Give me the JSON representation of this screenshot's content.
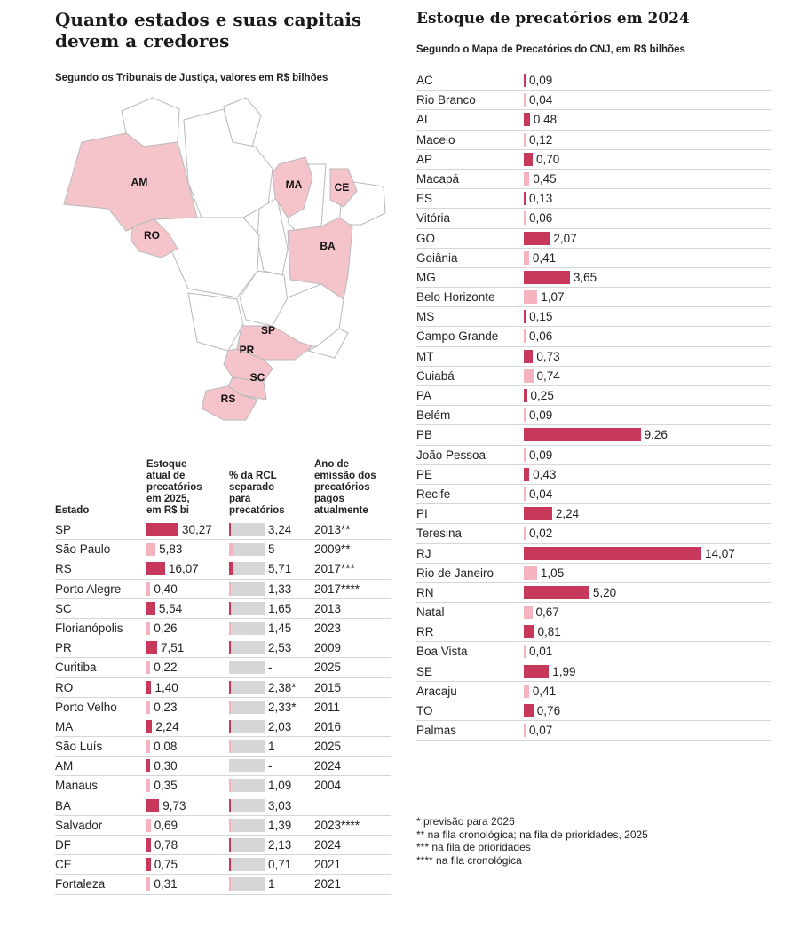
{
  "left_panel": {
    "title_line1": "Quanto estados e suas capitais",
    "title_line2": "devem a credores",
    "subtitle": "Segundo os Tribunais de Justiça, valores em R$ bilhões",
    "map_labels": [
      "AM",
      "RO",
      "MA",
      "CE",
      "BA",
      "SP",
      "PR",
      "SC",
      "RS"
    ],
    "columns": {
      "estado": "Estado",
      "estoque_l1": "Estoque",
      "estoque_l2": "atual de",
      "estoque_l3": "precatórios",
      "estoque_l4": "em 2025,",
      "estoque_l5": "em R$ bi",
      "rcl_l1": "% da RCL",
      "rcl_l2": "separado",
      "rcl_l3": "para",
      "rcl_l4": "precatórios",
      "ano_l1": "Ano de",
      "ano_l2": "emissão dos",
      "ano_l3": "precatórios",
      "ano_l4": "pagos",
      "ano_l5": "atualmente"
    }
  },
  "right_panel": {
    "title": "Estoque de precatórios em 2024",
    "subtitle": "Segundo o Mapa de Precatórios do CNJ, em R$ bilhões"
  },
  "colors": {
    "state": "#c8385a",
    "capital": "#f5b3bf",
    "map_fill": "#f5c4cb",
    "track": "#d6d6d6"
  },
  "chart_data": [
    {
      "type": "table",
      "title": "Quanto estados e suas capitais devem a credores",
      "subtitle": "Segundo os Tribunais de Justiça, valores em R$ bilhões",
      "rows": [
        {
          "name": "SP",
          "kind": "state",
          "estoque": 30.27,
          "estoque_label": "30,27",
          "rcl": 3.24,
          "rcl_label": "3,24",
          "ano": "2013**"
        },
        {
          "name": "São Paulo",
          "kind": "capital",
          "estoque": 5.83,
          "estoque_label": "5,83",
          "rcl": 5,
          "rcl_label": "5",
          "ano": "2009**"
        },
        {
          "name": "RS",
          "kind": "state",
          "estoque": 16.07,
          "estoque_label": "16,07",
          "rcl": 5.71,
          "rcl_label": "5,71",
          "ano": "2017***"
        },
        {
          "name": "Porto Alegre",
          "kind": "capital",
          "estoque": 0.4,
          "estoque_label": "0,40",
          "rcl": 1.33,
          "rcl_label": "1,33",
          "ano": "2017****"
        },
        {
          "name": "SC",
          "kind": "state",
          "estoque": 5.54,
          "estoque_label": "5,54",
          "rcl": 1.65,
          "rcl_label": "1,65",
          "ano": "2013"
        },
        {
          "name": "Florianópolis",
          "kind": "capital",
          "estoque": 0.26,
          "estoque_label": "0,26",
          "rcl": 1.45,
          "rcl_label": "1,45",
          "ano": "2023"
        },
        {
          "name": "PR",
          "kind": "state",
          "estoque": 7.51,
          "estoque_label": "7,51",
          "rcl": 2.53,
          "rcl_label": "2,53",
          "ano": "2009"
        },
        {
          "name": "Curitiba",
          "kind": "capital",
          "estoque": 0.22,
          "estoque_label": "0,22",
          "rcl": null,
          "rcl_label": "-",
          "ano": "2025"
        },
        {
          "name": "RO",
          "kind": "state",
          "estoque": 1.4,
          "estoque_label": "1,40",
          "rcl": 2.38,
          "rcl_label": "2,38*",
          "ano": "2015"
        },
        {
          "name": "Porto Velho",
          "kind": "capital",
          "estoque": 0.23,
          "estoque_label": "0,23",
          "rcl": 2.33,
          "rcl_label": "2,33*",
          "ano": "2011"
        },
        {
          "name": "MA",
          "kind": "state",
          "estoque": 2.24,
          "estoque_label": "2,24",
          "rcl": 2.03,
          "rcl_label": "2,03",
          "ano": "2016"
        },
        {
          "name": "São Luís",
          "kind": "capital",
          "estoque": 0.08,
          "estoque_label": "0,08",
          "rcl": 1,
          "rcl_label": "1",
          "ano": "2025"
        },
        {
          "name": "AM",
          "kind": "state",
          "estoque": 0.3,
          "estoque_label": "0,30",
          "rcl": null,
          "rcl_label": "-",
          "ano": "2024"
        },
        {
          "name": "Manaus",
          "kind": "capital",
          "estoque": 0.35,
          "estoque_label": "0,35",
          "rcl": 1.09,
          "rcl_label": "1,09",
          "ano": "2004"
        },
        {
          "name": "BA",
          "kind": "state",
          "estoque": 9.73,
          "estoque_label": "9,73",
          "rcl": 3.03,
          "rcl_label": "3,03",
          "ano": ""
        },
        {
          "name": "Salvador",
          "kind": "capital",
          "estoque": 0.69,
          "estoque_label": "0,69",
          "rcl": 1.39,
          "rcl_label": "1,39",
          "ano": "2023****"
        },
        {
          "name": "DF",
          "kind": "state",
          "estoque": 0.78,
          "estoque_label": "0,78",
          "rcl": 2.13,
          "rcl_label": "2,13",
          "ano": "2024"
        },
        {
          "name": "CE",
          "kind": "state",
          "estoque": 0.75,
          "estoque_label": "0,75",
          "rcl": 0.71,
          "rcl_label": "0,71",
          "ano": "2021"
        },
        {
          "name": "Fortaleza",
          "kind": "capital",
          "estoque": 0.31,
          "estoque_label": "0,31",
          "rcl": 1,
          "rcl_label": "1",
          "ano": "2021"
        }
      ]
    },
    {
      "type": "bar",
      "orientation": "horizontal",
      "title": "Estoque de precatórios em 2024",
      "subtitle": "Segundo o Mapa de Precatórios do CNJ, em R$ bilhões",
      "rows": [
        {
          "name": "AC",
          "kind": "state",
          "value": 0.09,
          "label": "0,09"
        },
        {
          "name": "Rio Branco",
          "kind": "capital",
          "value": 0.04,
          "label": "0,04"
        },
        {
          "name": "AL",
          "kind": "state",
          "value": 0.48,
          "label": "0,48"
        },
        {
          "name": "Maceio",
          "kind": "capital",
          "value": 0.12,
          "label": "0,12"
        },
        {
          "name": "AP",
          "kind": "state",
          "value": 0.7,
          "label": "0,70"
        },
        {
          "name": "Macapá",
          "kind": "capital",
          "value": 0.45,
          "label": "0,45"
        },
        {
          "name": "ES",
          "kind": "state",
          "value": 0.13,
          "label": "0,13"
        },
        {
          "name": "Vitória",
          "kind": "capital",
          "value": 0.06,
          "label": "0,06"
        },
        {
          "name": "GO",
          "kind": "state",
          "value": 2.07,
          "label": "2,07"
        },
        {
          "name": "Goiânia",
          "kind": "capital",
          "value": 0.41,
          "label": "0,41"
        },
        {
          "name": "MG",
          "kind": "state",
          "value": 3.65,
          "label": "3,65"
        },
        {
          "name": "Belo Horizonte",
          "kind": "capital",
          "value": 1.07,
          "label": "1,07"
        },
        {
          "name": "MS",
          "kind": "state",
          "value": 0.15,
          "label": "0,15"
        },
        {
          "name": "Campo Grande",
          "kind": "capital",
          "value": 0.06,
          "label": "0,06"
        },
        {
          "name": "MT",
          "kind": "state",
          "value": 0.73,
          "label": "0,73"
        },
        {
          "name": "Cuiabá",
          "kind": "capital",
          "value": 0.74,
          "label": "0,74"
        },
        {
          "name": "PA",
          "kind": "state",
          "value": 0.25,
          "label": "0,25"
        },
        {
          "name": "Belém",
          "kind": "capital",
          "value": 0.09,
          "label": "0,09"
        },
        {
          "name": "PB",
          "kind": "state",
          "value": 9.26,
          "label": "9,26"
        },
        {
          "name": "João Pessoa",
          "kind": "capital",
          "value": 0.09,
          "label": "0,09"
        },
        {
          "name": "PE",
          "kind": "state",
          "value": 0.43,
          "label": "0,43"
        },
        {
          "name": "Recife",
          "kind": "capital",
          "value": 0.04,
          "label": "0,04"
        },
        {
          "name": "PI",
          "kind": "state",
          "value": 2.24,
          "label": "2,24"
        },
        {
          "name": "Teresina",
          "kind": "capital",
          "value": 0.02,
          "label": "0,02"
        },
        {
          "name": "RJ",
          "kind": "state",
          "value": 14.07,
          "label": "14,07"
        },
        {
          "name": "Rio de Janeiro",
          "kind": "capital",
          "value": 1.05,
          "label": "1,05"
        },
        {
          "name": "RN",
          "kind": "state",
          "value": 5.2,
          "label": "5,20"
        },
        {
          "name": "Natal",
          "kind": "capital",
          "value": 0.67,
          "label": "0,67"
        },
        {
          "name": "RR",
          "kind": "state",
          "value": 0.81,
          "label": "0,81"
        },
        {
          "name": "Boa Vista",
          "kind": "capital",
          "value": 0.01,
          "label": "0,01"
        },
        {
          "name": "SE",
          "kind": "state",
          "value": 1.99,
          "label": "1,99"
        },
        {
          "name": "Aracaju",
          "kind": "capital",
          "value": 0.41,
          "label": "0,41"
        },
        {
          "name": "TO",
          "kind": "state",
          "value": 0.76,
          "label": "0,76"
        },
        {
          "name": "Palmas",
          "kind": "capital",
          "value": 0.07,
          "label": "0,07"
        }
      ]
    }
  ],
  "footnotes": [
    {
      "mark": "*",
      "text": " previsão para 2026"
    },
    {
      "mark": "**",
      "text": " na fila cronológica; na fila de prioridades, 2025"
    },
    {
      "mark": "***",
      "text": " na fila de prioridades"
    },
    {
      "mark": "****",
      "text": " na fila cronológica"
    }
  ]
}
